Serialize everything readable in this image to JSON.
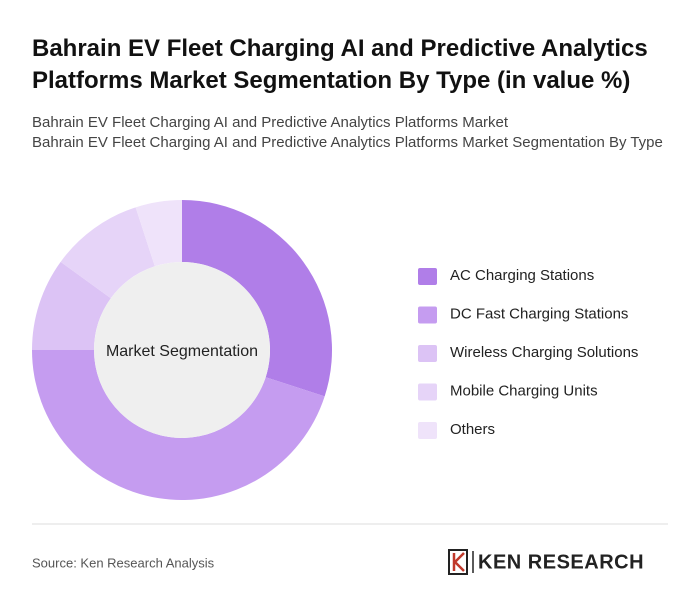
{
  "chart_data": {
    "type": "pie",
    "donut": true,
    "title": "Bahrain EV Fleet Charging AI and Predictive Analytics Platforms Market Segmentation By Type (in value %)",
    "subtitles": [
      "Bahrain EV Fleet Charging AI and Predictive Analytics Platforms Market",
      "Bahrain EV Fleet Charging AI and Predictive Analytics Platforms Market Segmentation By Type"
    ],
    "center_label": "Market Segmentation",
    "categories": [
      "AC Charging Stations",
      "DC Fast Charging Stations",
      "Wireless Charging Solutions",
      "Mobile Charging Units",
      "Others"
    ],
    "values": [
      30,
      45,
      10,
      10,
      5
    ],
    "colors": [
      "#b07ee8",
      "#c59cf0",
      "#dcc3f5",
      "#e6d4f8",
      "#efe3fa"
    ],
    "legend": "right",
    "source": "Source: Ken Research Analysis",
    "logo": "KEN RESEARCH"
  }
}
